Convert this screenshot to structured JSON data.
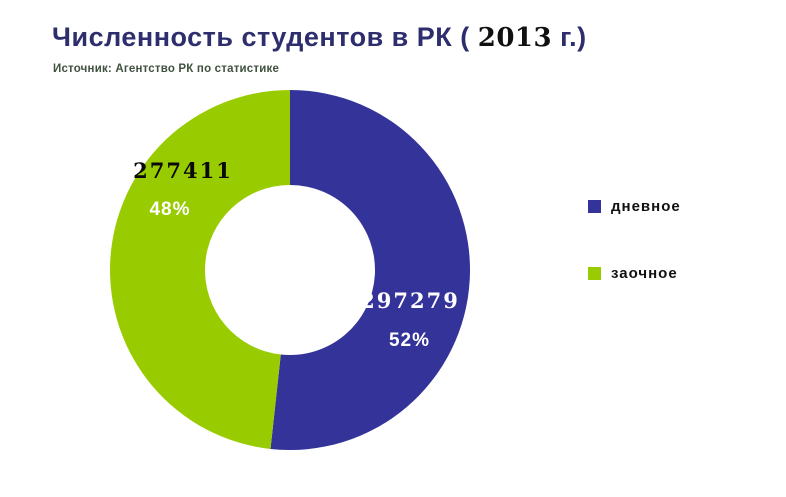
{
  "title": {
    "main": "Численность студентов в РК ( ",
    "year": "2013",
    "suffix": " г.)"
  },
  "source": "Источник: Агентство РК по статистике",
  "chart_data": {
    "type": "pie",
    "donut": true,
    "title": "Численность студентов в РК ( 2013 г.)",
    "source": "Источник: Агентство РК по статистике",
    "categories": [
      "дневное",
      "заочное"
    ],
    "values": [
      297279,
      277411
    ],
    "percent_labels": [
      "52%",
      "48%"
    ],
    "colors": [
      "#333399",
      "#99cc00"
    ],
    "start_angle_deg": -90,
    "direction": "clockwise",
    "inner_radius_ratio": 0.47,
    "legend_position": "right",
    "background": "#ffffff"
  }
}
